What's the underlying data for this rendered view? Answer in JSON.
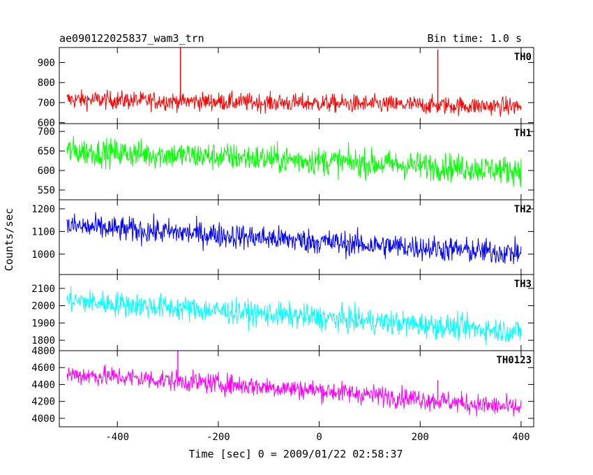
{
  "header": {
    "title": "ae090122025837_wam3_trn",
    "bin_time": "Bin time: 1.0 s"
  },
  "chart_data": {
    "type": "line",
    "ylabel": "Counts/sec",
    "xlabel": "Time [sec] 0 = 2009/01/22 02:58:37",
    "xlim": [
      -515,
      425
    ],
    "x_ticks": [
      -400,
      -200,
      0,
      200,
      400
    ],
    "panels": [
      {
        "name": "TH0",
        "color": "#ff0000",
        "ylim": [
          595,
          975
        ],
        "y_ticks": [
          600,
          700,
          800,
          900
        ],
        "x": [
          -500,
          -400,
          -300,
          -200,
          -100,
          0,
          100,
          200,
          300,
          400
        ],
        "values": [
          715,
          712,
          708,
          705,
          700,
          697,
          692,
          688,
          684,
          680
        ],
        "noise": 45,
        "spikes": [
          {
            "x": -275,
            "value": 975
          },
          {
            "x": 235,
            "value": 965
          }
        ]
      },
      {
        "name": "TH1",
        "color": "#00ff00",
        "ylim": [
          525,
          720
        ],
        "y_ticks": [
          550,
          600,
          650,
          700
        ],
        "x": [
          -500,
          -400,
          -300,
          -200,
          -100,
          0,
          100,
          200,
          300,
          400
        ],
        "values": [
          650,
          645,
          640,
          636,
          630,
          625,
          618,
          612,
          606,
          600
        ],
        "noise": 35,
        "spikes": []
      },
      {
        "name": "TH2",
        "color": "#0000ff",
        "ylim": [
          910,
          1240
        ],
        "y_ticks": [
          1000,
          1100,
          1200
        ],
        "x": [
          -500,
          -400,
          -300,
          -200,
          -100,
          0,
          100,
          200,
          300,
          400
        ],
        "values": [
          1125,
          1110,
          1098,
          1085,
          1070,
          1055,
          1040,
          1030,
          1015,
          1005
        ],
        "noise": 55,
        "spikes": []
      },
      {
        "name": "TH3",
        "color": "#00ffff",
        "ylim": [
          1740,
          2180
        ],
        "y_ticks": [
          1800,
          1900,
          2000,
          2100
        ],
        "x": [
          -500,
          -400,
          -300,
          -200,
          -100,
          0,
          100,
          200,
          300,
          400
        ],
        "values": [
          2030,
          2010,
          1990,
          1970,
          1950,
          1930,
          1910,
          1890,
          1870,
          1850
        ],
        "noise": 70,
        "spikes": []
      },
      {
        "name": "TH0123",
        "color": "#ff00ff",
        "ylim": [
          3900,
          4800
        ],
        "y_ticks": [
          4000,
          4200,
          4400,
          4600,
          4800
        ],
        "x": [
          -500,
          -400,
          -300,
          -200,
          -100,
          0,
          100,
          200,
          300,
          400
        ],
        "values": [
          4520,
          4490,
          4450,
          4410,
          4370,
          4330,
          4280,
          4230,
          4170,
          4120
        ],
        "noise": 120,
        "spikes": [
          {
            "x": -280,
            "value": 4800
          },
          {
            "x": 235,
            "value": 4450
          }
        ]
      }
    ]
  }
}
